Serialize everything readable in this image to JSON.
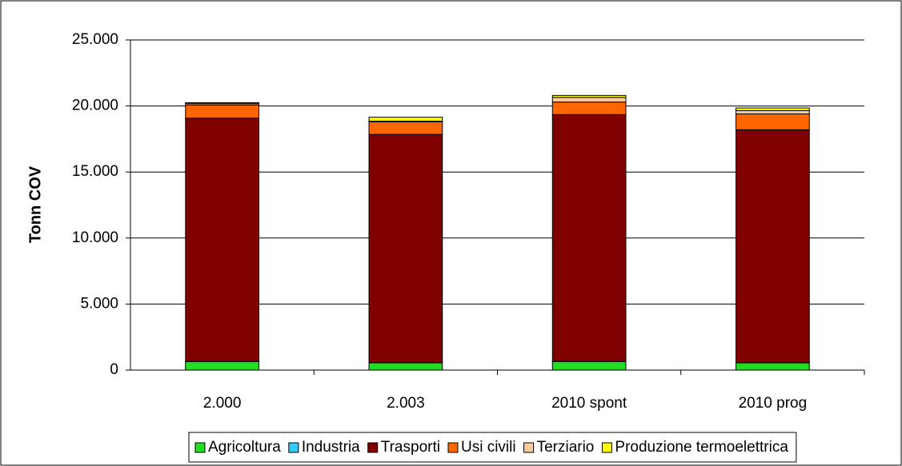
{
  "chart_data": {
    "type": "bar",
    "stacked": true,
    "y_label": "Tonn COV",
    "categories": [
      "2.000",
      "2.003",
      "2010 spont",
      "2010 prog"
    ],
    "series": [
      {
        "name": "Agricoltura",
        "color": "#22dd22",
        "values": [
          650,
          550,
          650,
          550
        ]
      },
      {
        "name": "Industria",
        "color": "#33ccff",
        "values": [
          30,
          30,
          30,
          30
        ]
      },
      {
        "name": "Trasporti",
        "color": "#800000",
        "values": [
          18400,
          17270,
          18670,
          17620
        ]
      },
      {
        "name": "Usi civili",
        "color": "#ff6600",
        "values": [
          1000,
          950,
          950,
          1200
        ]
      },
      {
        "name": "Terziario",
        "color": "#ffcc99",
        "values": [
          100,
          50,
          350,
          250
        ]
      },
      {
        "name": "Produzione termoelettrica",
        "color": "#ffff00",
        "values": [
          70,
          300,
          150,
          200
        ]
      }
    ],
    "ylim": [
      0,
      25000
    ],
    "yticks": [
      0,
      {
        "value": 5000,
        "label": "5.000"
      },
      {
        "value": 10000,
        "label": "10.000"
      },
      {
        "value": 15000,
        "label": "15.000"
      },
      {
        "value": 20000,
        "label": "20.000"
      },
      {
        "value": 25000,
        "label": "25.000"
      }
    ],
    "grid": true,
    "legend": "bottom"
  }
}
